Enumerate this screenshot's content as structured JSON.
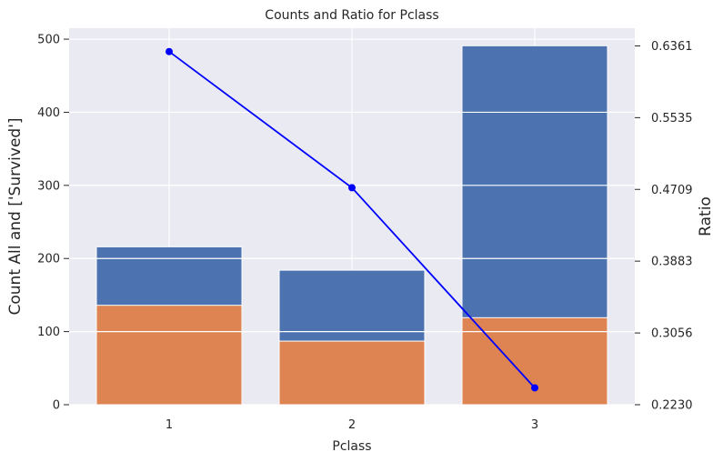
{
  "chart_data": {
    "type": "bar",
    "title": "Counts and Ratio for Pclass",
    "xlabel": "Pclass",
    "ylabel": "Count All and ['Survived']",
    "y2label": "Ratio",
    "categories": [
      "1",
      "2",
      "3"
    ],
    "series": [
      {
        "type": "bar",
        "axis": "left",
        "values": [
          216,
          184,
          491
        ],
        "color": "#4c72b0"
      },
      {
        "type": "bar",
        "axis": "left",
        "values": [
          136,
          87,
          119
        ],
        "color": "#dd8452"
      },
      {
        "type": "line",
        "axis": "right",
        "values": [
          0.6296,
          0.4728,
          0.2424
        ],
        "color": "#0000ff"
      }
    ],
    "ylim": [
      0,
      515
    ],
    "yticks": [
      0,
      100,
      200,
      300,
      400,
      500
    ],
    "y2lim": [
      0.223,
      0.6565
    ],
    "y2ticks": [
      "0.2230",
      "0.3056",
      "0.3883",
      "0.4709",
      "0.5535",
      "0.6361"
    ],
    "grid": true,
    "background_color": "#eaeaf2",
    "y2label_color": "#0000ff"
  }
}
